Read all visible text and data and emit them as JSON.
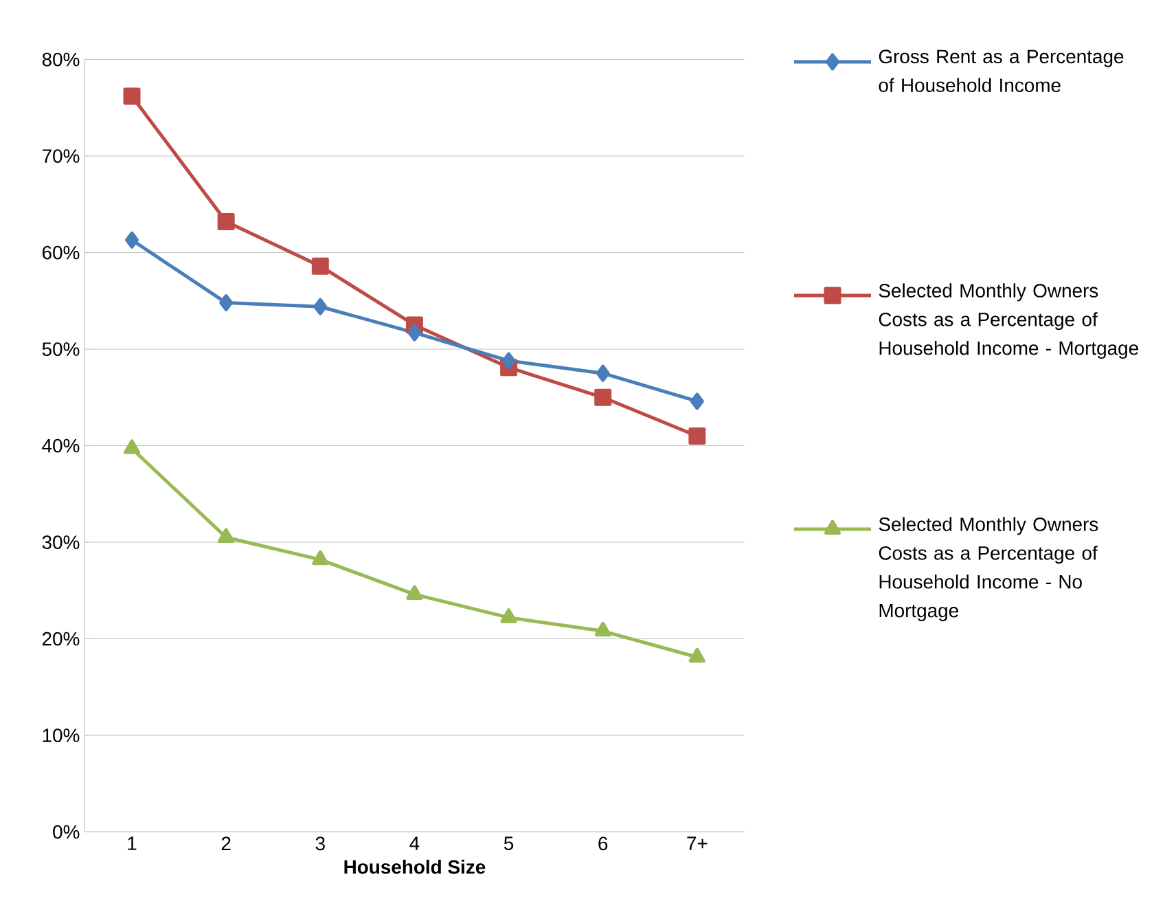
{
  "chart_data": {
    "type": "line",
    "xlabel": "Household Size",
    "categories": [
      "1",
      "2",
      "3",
      "4",
      "5",
      "6",
      "7+"
    ],
    "ylim": [
      0,
      80
    ],
    "yticks": [
      {
        "value": 0,
        "label": "0%"
      },
      {
        "value": 10,
        "label": "10%"
      },
      {
        "value": 20,
        "label": "20%"
      },
      {
        "value": 30,
        "label": "30%"
      },
      {
        "value": 40,
        "label": "40%"
      },
      {
        "value": 50,
        "label": "50%"
      },
      {
        "value": 60,
        "label": "60%"
      },
      {
        "value": 70,
        "label": "70%"
      },
      {
        "value": 80,
        "label": "80%"
      }
    ],
    "grid": "y",
    "legend": "right",
    "series": [
      {
        "name": "Gross Rent as a Percentage of Household Income",
        "color": "#4a7ebb",
        "marker": "diamond",
        "values": [
          61.3,
          54.8,
          54.4,
          51.7,
          48.8,
          47.5,
          44.6
        ]
      },
      {
        "name": "Selected Monthly Owners Costs as a Percentage of Household Income - Mortgage",
        "color": "#be4b48",
        "marker": "square",
        "values": [
          76.2,
          63.2,
          58.6,
          52.5,
          48.1,
          45.0,
          41.0
        ]
      },
      {
        "name": "Selected Monthly Owners Costs as a Percentage of Household Income - No Mortgage",
        "color": "#98b954",
        "marker": "triangle",
        "values": [
          39.7,
          30.5,
          28.2,
          24.6,
          22.2,
          20.8,
          18.1
        ]
      }
    ]
  }
}
